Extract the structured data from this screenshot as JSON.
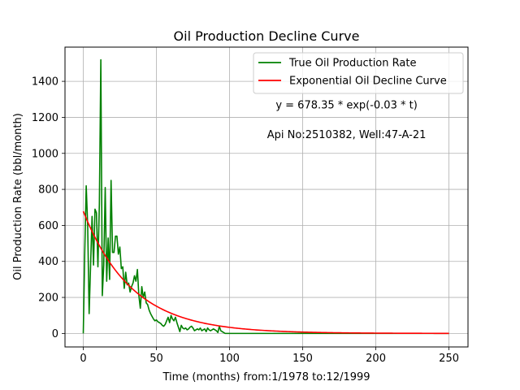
{
  "chart_data": {
    "type": "line",
    "title": "Oil Production Decline Curve",
    "xlabel": "Time (months) from:1/1978 to:12/1999",
    "ylabel": "Oil Production Rate (bbl/month)",
    "xlim": [
      -12.5,
      263
    ],
    "ylim": [
      -75,
      1590
    ],
    "xticks": [
      0,
      50,
      100,
      150,
      200,
      250
    ],
    "yticks": [
      0,
      200,
      400,
      600,
      800,
      1000,
      1200,
      1400
    ],
    "grid": true,
    "legend_position": "top-right",
    "annotations": [
      {
        "text": "y = 678.35 * exp(-0.03 * t)",
        "x": 180,
        "y": 1250
      },
      {
        "text": "Api No:2510382, Well:47-A-21",
        "x": 180,
        "y": 1085
      }
    ],
    "series": [
      {
        "name": "True Oil Production Rate",
        "color": "#008000",
        "kind": "data",
        "x": [
          0,
          1,
          2,
          3,
          4,
          5,
          6,
          7,
          8,
          9,
          10,
          11,
          12,
          13,
          14,
          15,
          16,
          17,
          18,
          19,
          20,
          21,
          22,
          23,
          24,
          25,
          26,
          27,
          28,
          29,
          30,
          31,
          32,
          33,
          34,
          35,
          36,
          37,
          38,
          39,
          40,
          41,
          42,
          43,
          44,
          45,
          46,
          47,
          48,
          49,
          50,
          51,
          52,
          53,
          54,
          55,
          56,
          57,
          58,
          59,
          60,
          61,
          62,
          63,
          64,
          65,
          66,
          67,
          68,
          69,
          70,
          71,
          72,
          73,
          74,
          75,
          76,
          77,
          78,
          79,
          80,
          81,
          82,
          83,
          84,
          85,
          86,
          87,
          88,
          89,
          90,
          91,
          92,
          93,
          94,
          95,
          96,
          97,
          98,
          99,
          100,
          101,
          110,
          120,
          130,
          140,
          150,
          160,
          170,
          180,
          190,
          200,
          210,
          220,
          230,
          240,
          250
        ],
        "y": [
          0,
          450,
          820,
          600,
          110,
          380,
          650,
          380,
          690,
          670,
          370,
          720,
          1520,
          210,
          380,
          810,
          290,
          530,
          300,
          850,
          450,
          450,
          540,
          540,
          440,
          480,
          360,
          370,
          250,
          340,
          270,
          280,
          230,
          260,
          280,
          320,
          290,
          355,
          210,
          140,
          260,
          200,
          230,
          170,
          160,
          130,
          110,
          95,
          80,
          70,
          75,
          65,
          60,
          55,
          45,
          40,
          50,
          70,
          90,
          60,
          100,
          80,
          70,
          90,
          60,
          35,
          10,
          45,
          30,
          25,
          30,
          20,
          25,
          35,
          40,
          30,
          15,
          20,
          25,
          20,
          30,
          15,
          20,
          25,
          10,
          30,
          20,
          15,
          20,
          25,
          20,
          15,
          5,
          40,
          15,
          10,
          5,
          0,
          0,
          0,
          0,
          0,
          0,
          0,
          0,
          0,
          0,
          0,
          0,
          0,
          0,
          0,
          0,
          0,
          0,
          0,
          0
        ]
      },
      {
        "name": "Exponential Oil Decline Curve",
        "color": "#ff0000",
        "kind": "fit",
        "a": 678.35,
        "b": 0.03,
        "x_range": [
          0,
          250
        ]
      }
    ]
  }
}
